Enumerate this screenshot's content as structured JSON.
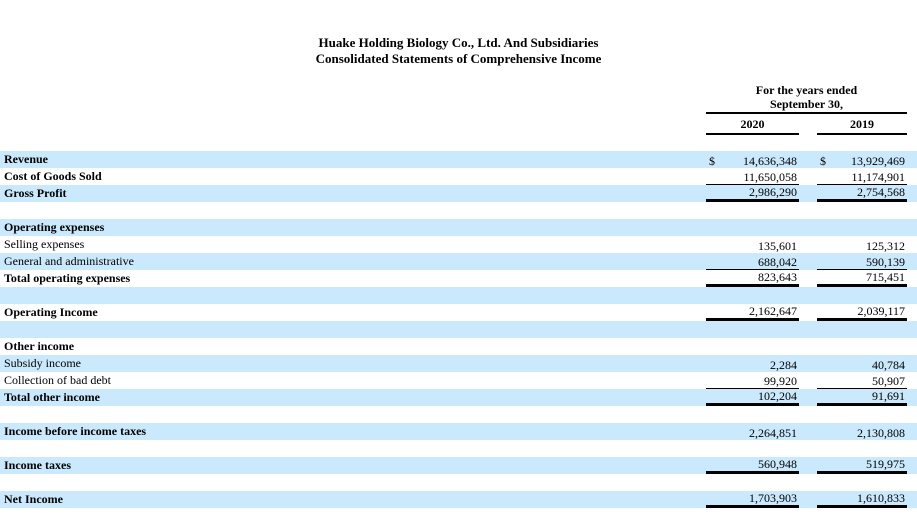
{
  "document": {
    "title_line1": "Huake Holding Biology Co., Ltd. And Subsidiaries",
    "title_line2": "Consolidated Statements of Comprehensive Income"
  },
  "table": {
    "period_header": {
      "line1": "For the years ended",
      "line2": "September 30,"
    },
    "years": [
      "2020",
      "2019"
    ],
    "currency_symbol": "$",
    "colors": {
      "row_shade": "#cbe9fc",
      "text": "#000000",
      "rule": "#000000"
    },
    "rows": [
      {
        "label": "Revenue",
        "bold": true,
        "shade": true,
        "dollar": true,
        "values": [
          "14,636,348",
          "13,929,469"
        ],
        "underline": "none"
      },
      {
        "label": "Cost of Goods Sold",
        "bold": true,
        "shade": false,
        "values": [
          "11,650,058",
          "11,174,901"
        ],
        "underline": "thin"
      },
      {
        "label": "Gross Profit",
        "bold": true,
        "shade": true,
        "values": [
          "2,986,290",
          "2,754,568"
        ],
        "underline": "thick"
      },
      {
        "blank": true,
        "shade": false
      },
      {
        "label": "Operating expenses",
        "bold": true,
        "shade": true,
        "values": null
      },
      {
        "label": "Selling expenses",
        "bold": false,
        "shade": false,
        "values": [
          "135,601",
          "125,312"
        ],
        "underline": "none"
      },
      {
        "label": "General and administrative",
        "bold": false,
        "shade": true,
        "values": [
          "688,042",
          "590,139"
        ],
        "underline": "thin"
      },
      {
        "label": "Total operating expenses",
        "bold": true,
        "shade": false,
        "values": [
          "823,643",
          "715,451"
        ],
        "underline": "thick"
      },
      {
        "blank": true,
        "shade": true
      },
      {
        "label": "Operating Income",
        "bold": true,
        "shade": false,
        "values": [
          "2,162,647",
          "2,039,117"
        ],
        "underline": "thick"
      },
      {
        "blank": true,
        "shade": true
      },
      {
        "label": "Other income",
        "bold": true,
        "shade": false,
        "values": null
      },
      {
        "label": "Subsidy income",
        "bold": false,
        "shade": true,
        "values": [
          "2,284",
          "40,784"
        ],
        "underline": "none"
      },
      {
        "label": "Collection of bad debt",
        "bold": false,
        "shade": false,
        "values": [
          "99,920",
          "50,907"
        ],
        "underline": "thin"
      },
      {
        "label": "Total other income",
        "bold": true,
        "shade": true,
        "values": [
          "102,204",
          "91,691"
        ],
        "underline": "thick"
      },
      {
        "blank": true,
        "shade": false
      },
      {
        "label": "Income before income taxes",
        "bold": true,
        "shade": true,
        "values": [
          "2,264,851",
          "2,130,808"
        ],
        "underline": "none"
      },
      {
        "blank": true,
        "shade": false
      },
      {
        "label": "Income taxes",
        "bold": true,
        "shade": true,
        "values": [
          "560,948",
          "519,975"
        ],
        "underline": "thick"
      },
      {
        "blank": true,
        "shade": false
      },
      {
        "label": "Net Income",
        "bold": true,
        "shade": true,
        "values": [
          "1,703,903",
          "1,610,833"
        ],
        "underline": "thick"
      }
    ]
  }
}
